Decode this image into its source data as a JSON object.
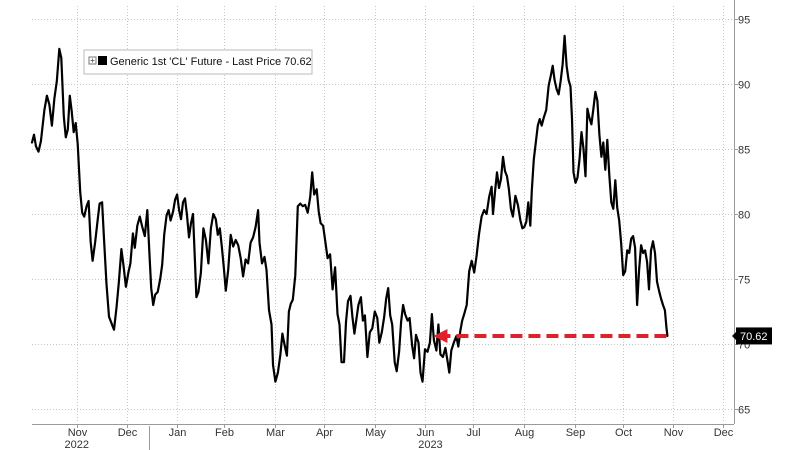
{
  "chart_data": {
    "type": "line",
    "legend": "Generic 1st 'CL' Future - Last Price 70.62",
    "last_price_label": "70.62",
    "last_price": 70.62,
    "ylim": [
      64,
      96
    ],
    "y_ticks": [
      65,
      70,
      75,
      80,
      85,
      90,
      95
    ],
    "y_axis_position": "right",
    "grid": true,
    "grid_style": "dotted vertical and horizontal",
    "x_ticks": [
      {
        "label": "Nov",
        "x": 0.9
      },
      {
        "label": "Dec",
        "x": 1.92
      },
      {
        "label": "Jan",
        "x": 2.92
      },
      {
        "label": "Feb",
        "x": 3.87
      },
      {
        "label": "Mar",
        "x": 4.9
      },
      {
        "label": "Apr",
        "x": 5.87
      },
      {
        "label": "May",
        "x": 6.9
      },
      {
        "label": "Jun",
        "x": 7.92
      },
      {
        "label": "Jul",
        "x": 8.87
      },
      {
        "label": "Aug",
        "x": 9.9
      },
      {
        "label": "Sep",
        "x": 10.92
      },
      {
        "label": "Oct",
        "x": 11.9
      },
      {
        "label": "Nov",
        "x": 12.9
      },
      {
        "label": "Dec",
        "x": 13.9
      }
    ],
    "year_labels": [
      {
        "label": "2022",
        "x": 0.9
      },
      {
        "label": "2023",
        "x": 8.02
      }
    ],
    "year_divider_x": 2.35,
    "xlim": [
      0,
      14.13
    ],
    "series": [
      {
        "line_color": "#000000",
        "points": [
          [
            0.0,
            85.5
          ],
          [
            0.04,
            86.1
          ],
          [
            0.08,
            85.2
          ],
          [
            0.13,
            84.8
          ],
          [
            0.18,
            85.6
          ],
          [
            0.25,
            88.0
          ],
          [
            0.3,
            89.1
          ],
          [
            0.35,
            88.4
          ],
          [
            0.4,
            86.8
          ],
          [
            0.45,
            88.9
          ],
          [
            0.5,
            90.2
          ],
          [
            0.55,
            92.7
          ],
          [
            0.59,
            92.0
          ],
          [
            0.64,
            87.5
          ],
          [
            0.68,
            85.9
          ],
          [
            0.72,
            86.5
          ],
          [
            0.76,
            89.1
          ],
          [
            0.8,
            87.9
          ],
          [
            0.84,
            86.3
          ],
          [
            0.88,
            87.0
          ],
          [
            0.92,
            85.4
          ],
          [
            0.97,
            81.7
          ],
          [
            1.01,
            80.1
          ],
          [
            1.05,
            79.8
          ],
          [
            1.1,
            80.6
          ],
          [
            1.14,
            81.0
          ],
          [
            1.18,
            77.9
          ],
          [
            1.22,
            76.4
          ],
          [
            1.27,
            77.8
          ],
          [
            1.32,
            79.5
          ],
          [
            1.36,
            80.8
          ],
          [
            1.41,
            80.9
          ],
          [
            1.45,
            78.1
          ],
          [
            1.5,
            74.6
          ],
          [
            1.55,
            72.1
          ],
          [
            1.6,
            71.6
          ],
          [
            1.65,
            71.1
          ],
          [
            1.7,
            72.8
          ],
          [
            1.75,
            74.8
          ],
          [
            1.8,
            77.3
          ],
          [
            1.84,
            76.1
          ],
          [
            1.89,
            74.4
          ],
          [
            1.94,
            75.5
          ],
          [
            1.98,
            76.2
          ],
          [
            2.03,
            78.5
          ],
          [
            2.07,
            77.4
          ],
          [
            2.12,
            79.1
          ],
          [
            2.17,
            79.8
          ],
          [
            2.22,
            79.0
          ],
          [
            2.27,
            78.3
          ],
          [
            2.32,
            80.3
          ],
          [
            2.36,
            77.3
          ],
          [
            2.4,
            74.3
          ],
          [
            2.44,
            73.0
          ],
          [
            2.48,
            73.8
          ],
          [
            2.53,
            74.0
          ],
          [
            2.58,
            75.0
          ],
          [
            2.62,
            76.1
          ],
          [
            2.66,
            78.4
          ],
          [
            2.71,
            79.9
          ],
          [
            2.75,
            80.3
          ],
          [
            2.79,
            79.5
          ],
          [
            2.84,
            80.2
          ],
          [
            2.88,
            81.1
          ],
          [
            2.92,
            81.5
          ],
          [
            2.96,
            80.3
          ],
          [
            3.0,
            79.6
          ],
          [
            3.04,
            80.9
          ],
          [
            3.08,
            81.2
          ],
          [
            3.12,
            79.9
          ],
          [
            3.16,
            78.2
          ],
          [
            3.2,
            79.3
          ],
          [
            3.24,
            80.0
          ],
          [
            3.27,
            77.2
          ],
          [
            3.31,
            73.6
          ],
          [
            3.35,
            74.0
          ],
          [
            3.4,
            75.5
          ],
          [
            3.45,
            78.9
          ],
          [
            3.5,
            78.0
          ],
          [
            3.55,
            76.2
          ],
          [
            3.6,
            78.9
          ],
          [
            3.65,
            80.0
          ],
          [
            3.7,
            79.6
          ],
          [
            3.74,
            78.4
          ],
          [
            3.78,
            78.9
          ],
          [
            3.82,
            77.5
          ],
          [
            3.86,
            75.9
          ],
          [
            3.9,
            74.1
          ],
          [
            3.95,
            75.7
          ],
          [
            4.0,
            78.4
          ],
          [
            4.05,
            77.5
          ],
          [
            4.1,
            78.0
          ],
          [
            4.15,
            77.6
          ],
          [
            4.2,
            76.6
          ],
          [
            4.25,
            75.2
          ],
          [
            4.3,
            76.5
          ],
          [
            4.35,
            76.2
          ],
          [
            4.4,
            77.8
          ],
          [
            4.45,
            78.2
          ],
          [
            4.5,
            79.0
          ],
          [
            4.55,
            80.3
          ],
          [
            4.58,
            77.8
          ],
          [
            4.63,
            76.2
          ],
          [
            4.68,
            76.7
          ],
          [
            4.72,
            75.7
          ],
          [
            4.77,
            72.6
          ],
          [
            4.82,
            71.5
          ],
          [
            4.85,
            68.4
          ],
          [
            4.9,
            67.1
          ],
          [
            4.95,
            67.8
          ],
          [
            5.0,
            69.2
          ],
          [
            5.04,
            70.8
          ],
          [
            5.08,
            70.0
          ],
          [
            5.13,
            69.1
          ],
          [
            5.17,
            72.5
          ],
          [
            5.21,
            73.1
          ],
          [
            5.25,
            73.4
          ],
          [
            5.3,
            75.3
          ],
          [
            5.35,
            80.6
          ],
          [
            5.4,
            80.8
          ],
          [
            5.45,
            80.6
          ],
          [
            5.5,
            80.7
          ],
          [
            5.55,
            80.1
          ],
          [
            5.6,
            81.3
          ],
          [
            5.64,
            83.2
          ],
          [
            5.68,
            81.5
          ],
          [
            5.73,
            81.9
          ],
          [
            5.77,
            80.2
          ],
          [
            5.81,
            79.3
          ],
          [
            5.86,
            79.1
          ],
          [
            5.9,
            78.0
          ],
          [
            5.95,
            76.6
          ],
          [
            6.0,
            76.9
          ],
          [
            6.05,
            74.2
          ],
          [
            6.1,
            75.9
          ],
          [
            6.15,
            72.3
          ],
          [
            6.19,
            71.5
          ],
          [
            6.23,
            68.6
          ],
          [
            6.28,
            68.6
          ],
          [
            6.32,
            71.7
          ],
          [
            6.36,
            73.3
          ],
          [
            6.41,
            73.7
          ],
          [
            6.45,
            72.1
          ],
          [
            6.49,
            70.8
          ],
          [
            6.53,
            71.9
          ],
          [
            6.57,
            73.0
          ],
          [
            6.62,
            73.6
          ],
          [
            6.66,
            71.8
          ],
          [
            6.7,
            72.2
          ],
          [
            6.75,
            69.0
          ],
          [
            6.8,
            70.9
          ],
          [
            6.85,
            71.2
          ],
          [
            6.9,
            72.5
          ],
          [
            6.95,
            72.0
          ],
          [
            6.99,
            70.1
          ],
          [
            7.04,
            70.9
          ],
          [
            7.09,
            72.1
          ],
          [
            7.13,
            73.5
          ],
          [
            7.17,
            74.3
          ],
          [
            7.21,
            72.2
          ],
          [
            7.25,
            71.5
          ],
          [
            7.3,
            68.6
          ],
          [
            7.34,
            67.9
          ],
          [
            7.39,
            69.4
          ],
          [
            7.43,
            71.7
          ],
          [
            7.47,
            73.0
          ],
          [
            7.51,
            72.3
          ],
          [
            7.56,
            71.8
          ],
          [
            7.6,
            72.0
          ],
          [
            7.65,
            69.9
          ],
          [
            7.69,
            68.9
          ],
          [
            7.73,
            70.7
          ],
          [
            7.78,
            70.1
          ],
          [
            7.82,
            67.8
          ],
          [
            7.86,
            67.1
          ],
          [
            7.91,
            69.6
          ],
          [
            7.96,
            69.4
          ],
          [
            8.01,
            70.1
          ],
          [
            8.05,
            72.3
          ],
          [
            8.09,
            70.3
          ],
          [
            8.14,
            69.5
          ],
          [
            8.18,
            71.5
          ],
          [
            8.22,
            69.2
          ],
          [
            8.27,
            69.0
          ],
          [
            8.32,
            69.7
          ],
          [
            8.36,
            68.8
          ],
          [
            8.4,
            67.8
          ],
          [
            8.44,
            69.5
          ],
          [
            8.49,
            70.1
          ],
          [
            8.54,
            70.6
          ],
          [
            8.58,
            69.8
          ],
          [
            8.62,
            71.0
          ],
          [
            8.66,
            71.8
          ],
          [
            8.7,
            72.3
          ],
          [
            8.75,
            73.0
          ],
          [
            8.8,
            75.6
          ],
          [
            8.85,
            76.4
          ],
          [
            8.9,
            75.5
          ],
          [
            8.95,
            76.8
          ],
          [
            9.0,
            78.5
          ],
          [
            9.05,
            79.8
          ],
          [
            9.1,
            80.3
          ],
          [
            9.15,
            80.0
          ],
          [
            9.2,
            81.3
          ],
          [
            9.25,
            82.1
          ],
          [
            9.28,
            80.0
          ],
          [
            9.32,
            81.7
          ],
          [
            9.36,
            83.2
          ],
          [
            9.4,
            82.0
          ],
          [
            9.44,
            82.7
          ],
          [
            9.48,
            84.4
          ],
          [
            9.52,
            83.3
          ],
          [
            9.56,
            82.9
          ],
          [
            9.6,
            81.9
          ],
          [
            9.64,
            80.4
          ],
          [
            9.68,
            79.8
          ],
          [
            9.73,
            81.4
          ],
          [
            9.78,
            80.7
          ],
          [
            9.83,
            79.5
          ],
          [
            9.87,
            78.9
          ],
          [
            9.91,
            79.0
          ],
          [
            9.95,
            79.4
          ],
          [
            9.99,
            80.9
          ],
          [
            10.03,
            79.1
          ],
          [
            10.06,
            81.8
          ],
          [
            10.1,
            84.2
          ],
          [
            10.14,
            85.5
          ],
          [
            10.18,
            86.8
          ],
          [
            10.22,
            87.3
          ],
          [
            10.26,
            86.8
          ],
          [
            10.3,
            87.4
          ],
          [
            10.35,
            88.0
          ],
          [
            10.4,
            89.9
          ],
          [
            10.44,
            90.6
          ],
          [
            10.48,
            91.4
          ],
          [
            10.52,
            90.3
          ],
          [
            10.56,
            89.6
          ],
          [
            10.6,
            89.2
          ],
          [
            10.64,
            90.2
          ],
          [
            10.68,
            91.5
          ],
          [
            10.72,
            93.7
          ],
          [
            10.76,
            91.4
          ],
          [
            10.8,
            90.3
          ],
          [
            10.84,
            89.8
          ],
          [
            10.87,
            87.3
          ],
          [
            10.9,
            83.2
          ],
          [
            10.94,
            82.4
          ],
          [
            10.98,
            82.8
          ],
          [
            11.02,
            84.2
          ],
          [
            11.06,
            86.3
          ],
          [
            11.1,
            85.0
          ],
          [
            11.14,
            82.9
          ],
          [
            11.18,
            88.1
          ],
          [
            11.22,
            87.4
          ],
          [
            11.26,
            86.9
          ],
          [
            11.3,
            88.1
          ],
          [
            11.34,
            89.4
          ],
          [
            11.38,
            88.7
          ],
          [
            11.42,
            86.1
          ],
          [
            11.46,
            84.4
          ],
          [
            11.5,
            85.5
          ],
          [
            11.54,
            83.4
          ],
          [
            11.58,
            85.7
          ],
          [
            11.62,
            83.0
          ],
          [
            11.66,
            80.9
          ],
          [
            11.7,
            80.4
          ],
          [
            11.74,
            82.6
          ],
          [
            11.78,
            80.5
          ],
          [
            11.82,
            79.5
          ],
          [
            11.86,
            77.7
          ],
          [
            11.9,
            75.3
          ],
          [
            11.94,
            75.6
          ],
          [
            11.98,
            77.2
          ],
          [
            12.02,
            77.0
          ],
          [
            12.06,
            78.1
          ],
          [
            12.1,
            78.3
          ],
          [
            12.14,
            77.4
          ],
          [
            12.18,
            73.0
          ],
          [
            12.22,
            75.7
          ],
          [
            12.26,
            77.6
          ],
          [
            12.3,
            77.0
          ],
          [
            12.34,
            77.2
          ],
          [
            12.38,
            76.3
          ],
          [
            12.42,
            74.2
          ],
          [
            12.46,
            77.2
          ],
          [
            12.5,
            77.9
          ],
          [
            12.54,
            77.0
          ],
          [
            12.58,
            74.8
          ],
          [
            12.62,
            74.1
          ],
          [
            12.66,
            73.5
          ],
          [
            12.7,
            73.0
          ],
          [
            12.74,
            72.6
          ],
          [
            12.77,
            71.3
          ],
          [
            12.79,
            70.62
          ]
        ]
      }
    ],
    "annotation": {
      "type": "dashed-arrow",
      "from": [
        12.77,
        70.62
      ],
      "to": [
        8.08,
        70.62
      ],
      "color": "#e0202a"
    }
  }
}
